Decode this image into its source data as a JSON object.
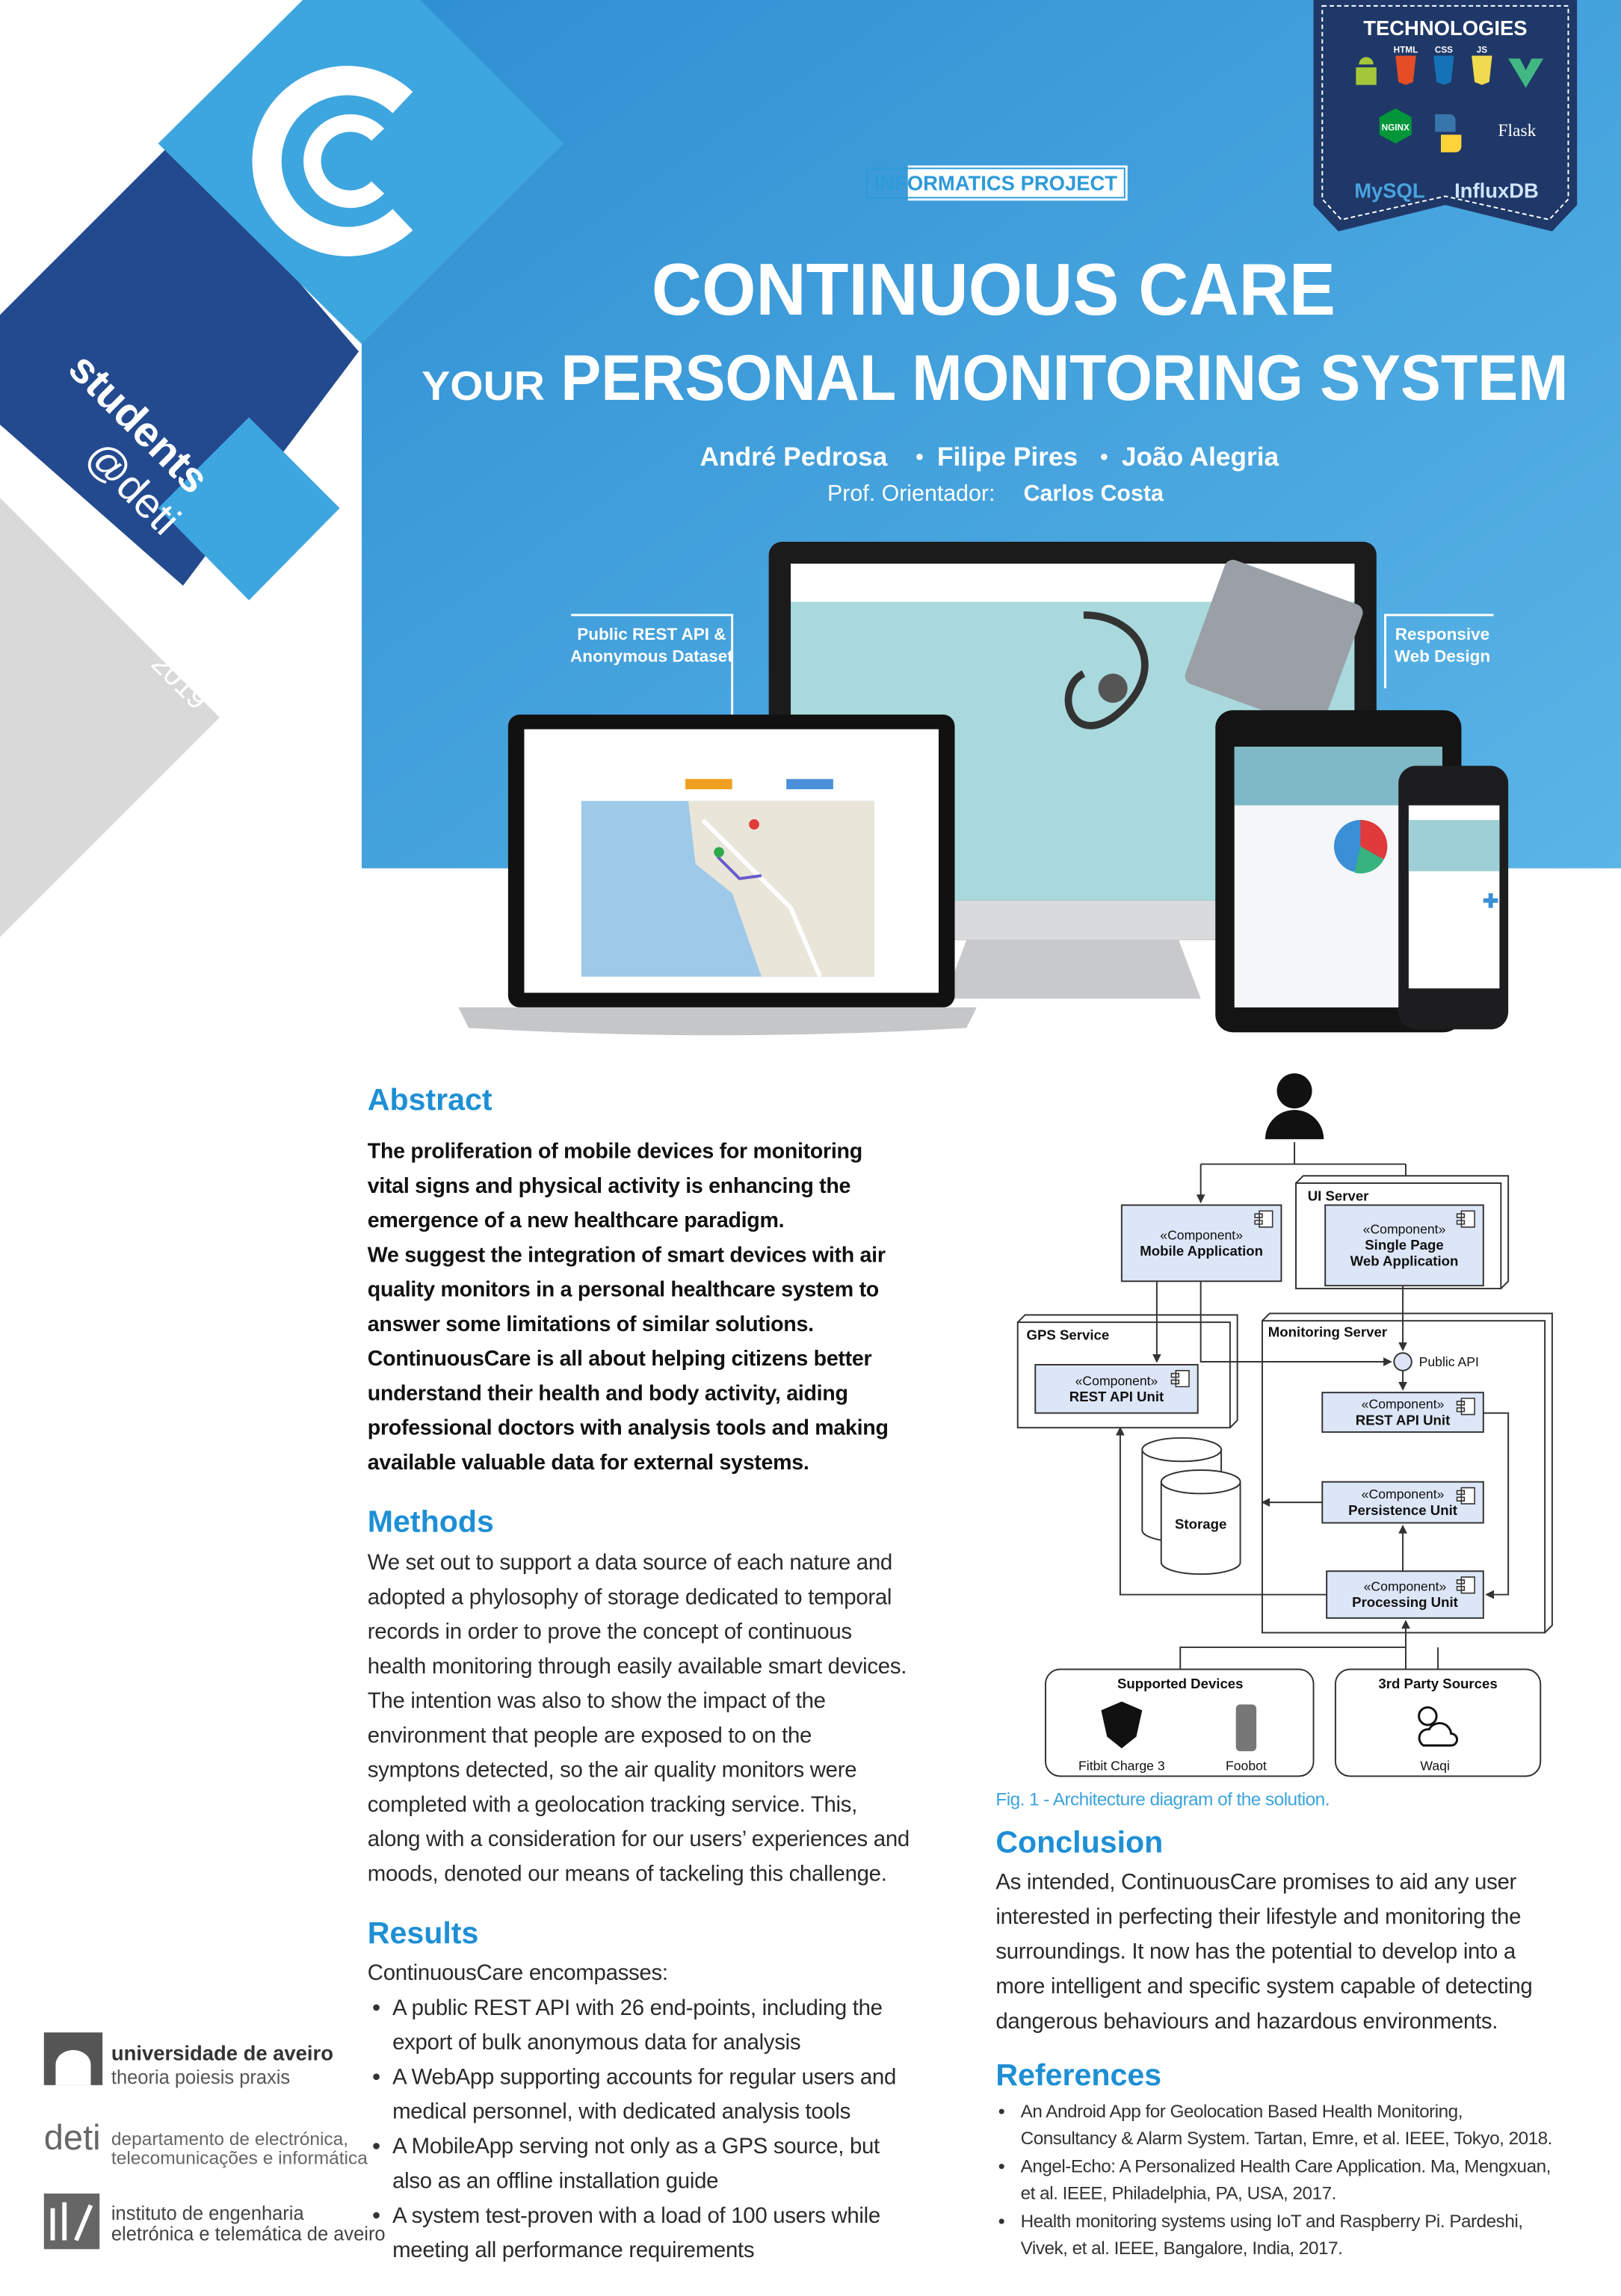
{
  "header": {
    "badge": "INFORMATICS PROJECT",
    "title": "CONTINUOUS CARE",
    "subtitle_lead": "YOUR",
    "subtitle": "PERSONAL MONITORING SYSTEM",
    "authors": [
      "André Pedrosa",
      "Filipe Pires",
      "João Alegria"
    ],
    "advisor_label": "Prof. Orientador:",
    "advisor": "Carlos Costa"
  },
  "sidebar": {
    "label": "students",
    "handle": "@deti",
    "year": "2019"
  },
  "technologies": {
    "title": "TECHNOLOGIES",
    "logos": [
      "HTML",
      "CSS",
      "JS",
      "NGINX",
      "Flask",
      "MySQL",
      "InfluxDB"
    ]
  },
  "callouts": {
    "api": [
      "Public REST API &",
      "Anonymous Dataset"
    ],
    "responsive": [
      "Responsive",
      "Web Design"
    ]
  },
  "abstract": {
    "heading": "Abstract",
    "lines": [
      "The proliferation of mobile devices for monitoring",
      "vital signs and physical activity is enhancing the",
      "emergence of a new healthcare paradigm.",
      "We suggest the integration of smart devices with air",
      "quality monitors in a personal healthcare system to",
      "answer some limitations of similar solutions.",
      "ContinuousCare is all about helping citizens better",
      "understand their health and body activity, aiding",
      "professional doctors with analysis tools and making",
      "available valuable data for external systems."
    ]
  },
  "methods": {
    "heading": "Methods",
    "lines": [
      "We set out to support a data source of each nature and",
      "adopted a phylosophy of storage dedicated to temporal",
      "records in order to prove the concept of continuous",
      "health monitoring through easily available smart devices.",
      "The intention was also to show the impact of the",
      "environment that people are exposed to on the",
      "symptons detected, so the air quality monitors were",
      "completed with a geolocation tracking service. This,",
      "along with a consideration for our users’ experiences and",
      "moods, denoted our means of tackeling this challenge."
    ]
  },
  "results": {
    "heading": "Results",
    "intro": "ContinuousCare  encompasses:",
    "bullets": [
      [
        "A public REST API with 26 end-points, including the",
        "export of bulk anonymous data for analysis"
      ],
      [
        "A WebApp supporting accounts for regular users and",
        "medical personnel, with dedicated analysis tools"
      ],
      [
        "A MobileApp serving not only as a GPS source, but",
        "also as an offline installation guide"
      ],
      [
        "A system test-proven with a load of 100 users  while",
        "meeting all performance requirements"
      ]
    ]
  },
  "diagram": {
    "containers": [
      "UI Server",
      "GPS Service",
      "Monitoring Server",
      "Supported Devices",
      "3rd Party Sources"
    ],
    "components": [
      {
        "stereotype": "«Component»",
        "lines": [
          "Mobile Application"
        ]
      },
      {
        "stereotype": "«Component»",
        "lines": [
          "Single Page",
          "Web Application"
        ]
      },
      {
        "stereotype": "«Component»",
        "lines": [
          "REST API Unit"
        ]
      },
      {
        "stereotype": "«Component»",
        "lines": [
          "REST API Unit"
        ]
      },
      {
        "stereotype": "«Component»",
        "lines": [
          "Persistence Unit"
        ]
      },
      {
        "stereotype": "«Component»",
        "lines": [
          "Processing Unit"
        ]
      }
    ],
    "interface": "Public API",
    "storage": "Storage",
    "devices": [
      "Fitbit Charge 3",
      "Foobot"
    ],
    "sources": [
      "Waqi"
    ],
    "caption": "Fig. 1 - Architecture diagram of the solution."
  },
  "conclusion": {
    "heading": "Conclusion",
    "lines": [
      "As intended, ContinuousCare promises to aid any user",
      "interested in perfecting their lifestyle and monitoring the",
      "surroundings. It now has the potential to develop into a",
      "more intelligent and specific system capable of detecting",
      "dangerous behaviours and hazardous environments."
    ]
  },
  "references": {
    "heading": "References",
    "items": [
      [
        "An Android App for Geolocation Based Health Monitoring,",
        "Consultancy & Alarm System. Tartan, Emre, et al. IEEE, Tokyo, 2018."
      ],
      [
        "Angel-Echo: A Personalized Health Care Application. Ma, Mengxuan,",
        "et al. IEEE, Philadelphia, PA, USA, 2017."
      ],
      [
        "Health monitoring systems using IoT and Raspberry Pi. Pardeshi,",
        "Vivek, et al. IEEE, Bangalore, India, 2017."
      ]
    ]
  },
  "institutions": [
    {
      "lines": [
        "universidade de aveiro",
        "theoria poiesis praxis"
      ]
    },
    {
      "name": "deti",
      "lines": [
        "departamento de electrónica,",
        "telecomunicações e informática"
      ]
    },
    {
      "lines": [
        "instituto de engenharia",
        "eletrónica e telemática de aveiro"
      ]
    }
  ]
}
